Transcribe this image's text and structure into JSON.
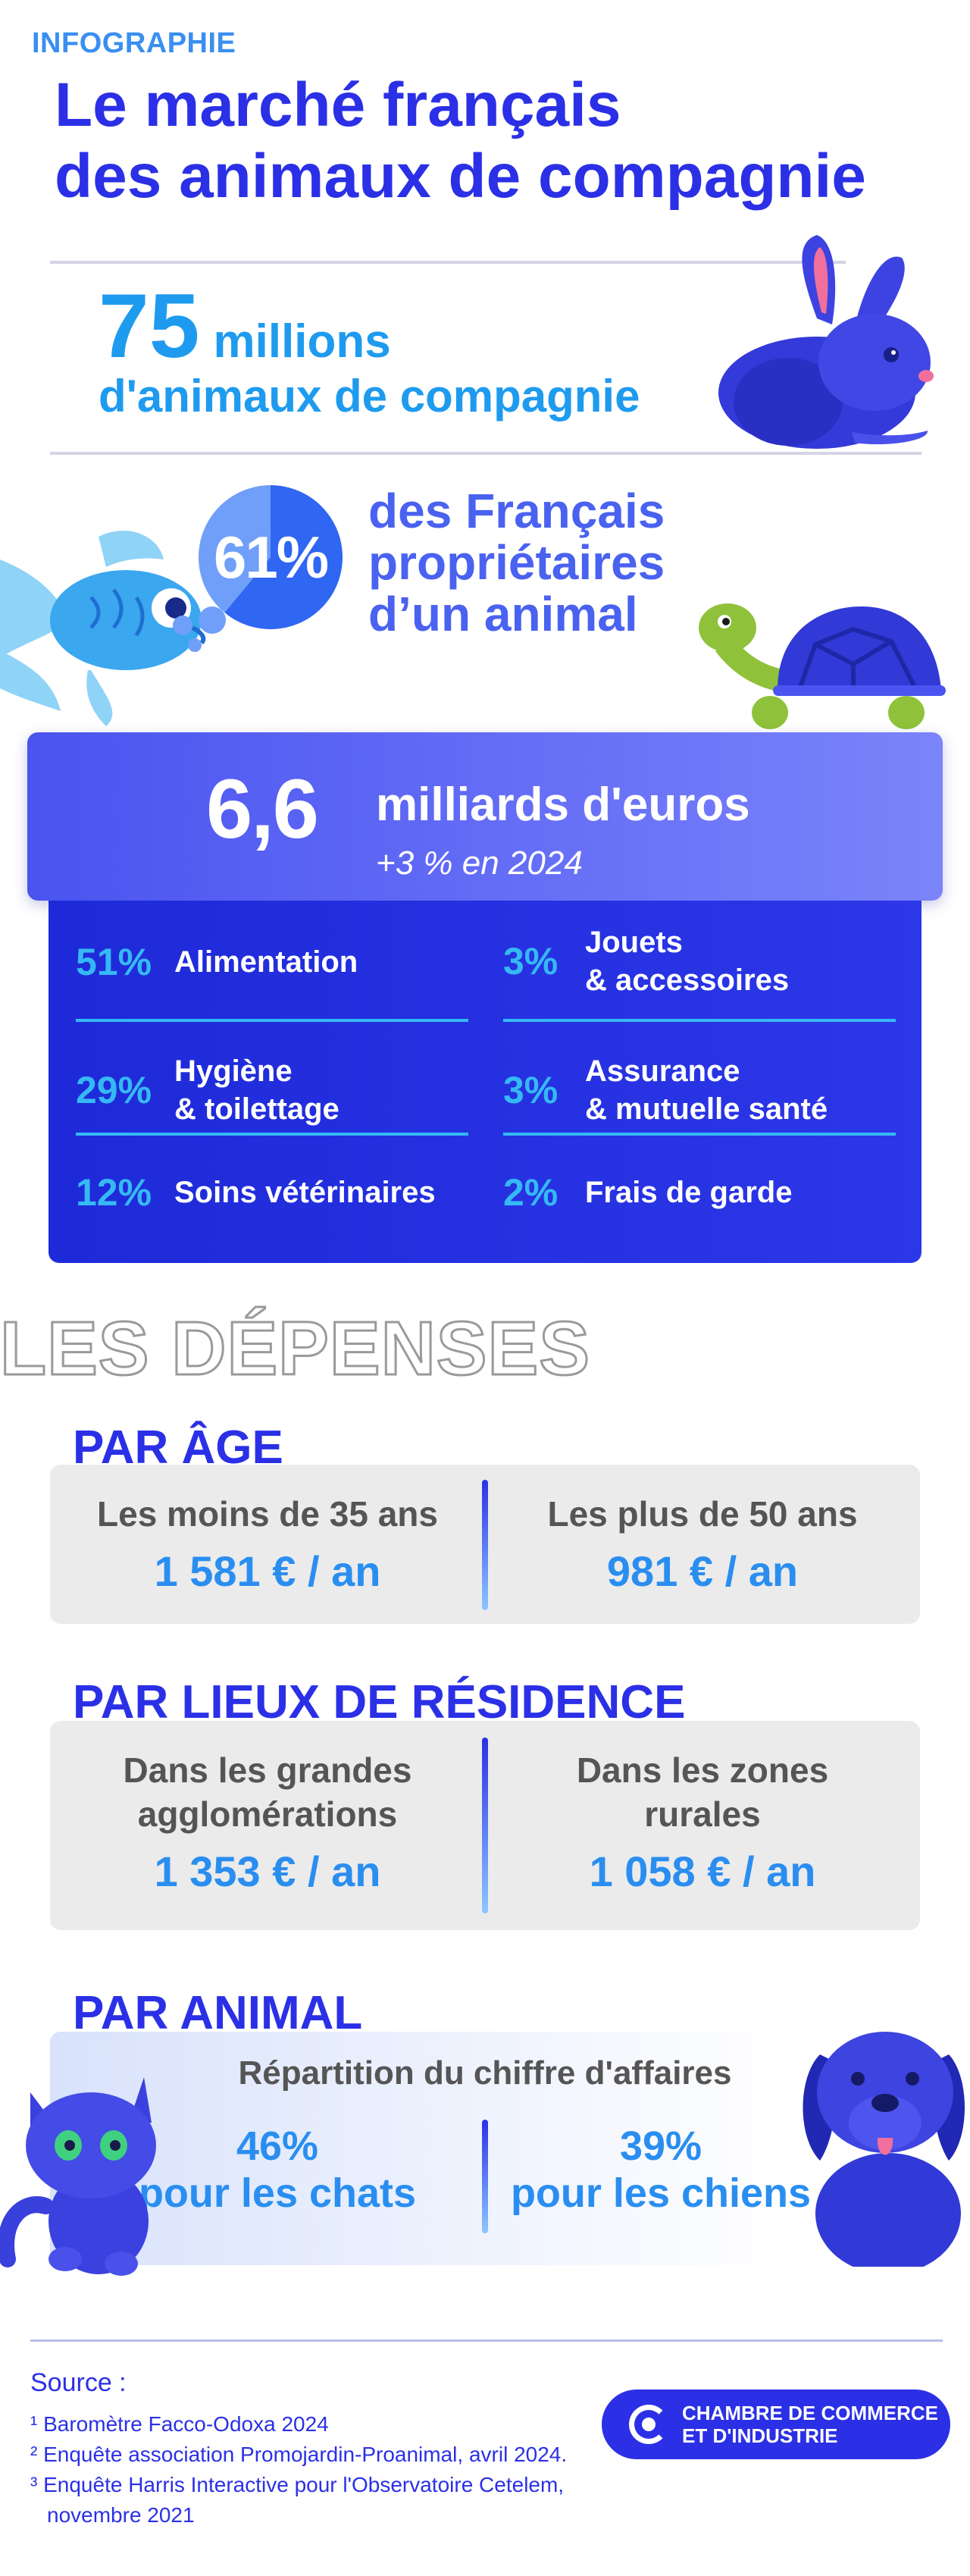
{
  "header": {
    "kicker": "INFOGRAPHIE",
    "title_line1": "Le marché français",
    "title_line2": "des animaux de compagnie"
  },
  "pets": {
    "count": "75",
    "unit": "millions",
    "label": "d'animaux de compagnie"
  },
  "owners": {
    "percent": "61%",
    "percent_value": 61,
    "line1": "des Français",
    "line2": "propriétaires",
    "line3": "d’un animal"
  },
  "market": {
    "amount": "6,6",
    "unit": "milliards d'euros",
    "growth": "+3 % en 2024",
    "categories": [
      {
        "percent": "51%",
        "line1": "Alimentation",
        "line2": ""
      },
      {
        "percent": "3%",
        "line1": "Jouets",
        "line2": "& accessoires"
      },
      {
        "percent": "29%",
        "line1": "Hygiène",
        "line2": "& toilettage"
      },
      {
        "percent": "3%",
        "line1": "Assurance",
        "line2": "& mutuelle santé"
      },
      {
        "percent": "12%",
        "line1": "Soins vétérinaires",
        "line2": ""
      },
      {
        "percent": "2%",
        "line1": "Frais de garde",
        "line2": ""
      }
    ]
  },
  "depenses": {
    "title": "LES DÉPENSES",
    "age": {
      "title": "PAR ÂGE",
      "left_label": "Les moins de 35 ans",
      "left_value": "1 581 € / an",
      "right_label": "Les plus de 50 ans",
      "right_value": "981 € / an"
    },
    "residence": {
      "title": "PAR LIEUX DE RÉSIDENCE",
      "left_label_1": "Dans les grandes",
      "left_label_2": "agglomérations",
      "left_value": "1 353 € / an",
      "right_label_1": "Dans les zones",
      "right_label_2": "rurales",
      "right_value": "1 058 € / an"
    },
    "animal": {
      "title": "PAR ANIMAL",
      "subtitle": "Répartition du chiffre d'affaires",
      "left_value": "46%",
      "left_label": "pour les chats",
      "right_value": "39%",
      "right_label": "pour les chiens"
    }
  },
  "footer": {
    "source_title": "Source :",
    "sources": [
      "¹ Baromètre Facco-Odoxa 2024",
      "² Enquête association Promojardin-Proanimal, avril 2024.",
      "³ Enquête Harris Interactive pour l'Observatoire Cetelem,",
      "novembre 2021"
    ],
    "org_line1": "CHAMBRE DE COMMERCE",
    "org_line2": "ET D'INDUSTRIE"
  },
  "colors": {
    "brand_blue": "#2b30e6",
    "light_blue": "#1e9bef",
    "accent_cyan": "#35b9f5",
    "gray_box": "#ebebeb"
  }
}
